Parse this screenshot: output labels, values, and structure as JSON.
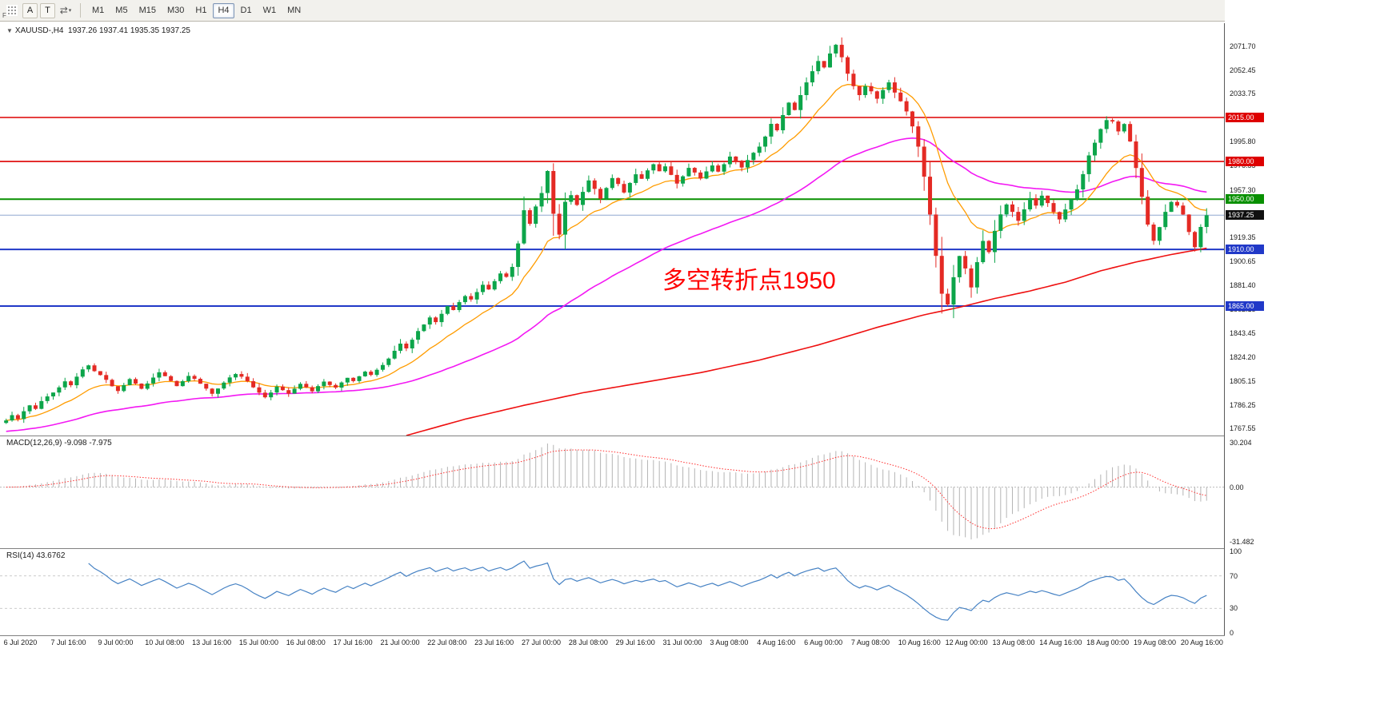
{
  "toolbar": {
    "stray_label": "F",
    "buttons": [
      {
        "name": "annotation-tool",
        "label": "A"
      },
      {
        "name": "text-tool",
        "label": "T"
      }
    ],
    "timeframes": [
      "M1",
      "M5",
      "M15",
      "M30",
      "H1",
      "H4",
      "D1",
      "W1",
      "MN"
    ],
    "active_timeframe": "H4"
  },
  "main_chart": {
    "marker": "▼",
    "symbol_info": "XAUUSD-,H4  1937.26 1937.41 1935.35 1937.25",
    "annotation": {
      "text": "多空转折点1950",
      "color": "#FF0000"
    },
    "y_ticks": [
      "2071.70",
      "2052.45",
      "2033.75",
      "1995.80",
      "1976.55",
      "1957.30",
      "1919.35",
      "1900.65",
      "1881.40",
      "1862.15",
      "1843.45",
      "1824.20",
      "1805.15",
      "1786.25",
      "1767.55"
    ]
  },
  "macd": {
    "label": "MACD(12,26,9) -9.098 -7.975",
    "y_ticks": [
      "30.204",
      "0.00",
      "-31.482"
    ]
  },
  "rsi": {
    "label": "RSI(14) 43.6762",
    "y_ticks": [
      "100",
      "70",
      "30",
      "0"
    ]
  },
  "x_axis": {
    "labels": [
      "6 Jul 2020",
      "7 Jul 16:00",
      "9 Jul 00:00",
      "10 Jul 08:00",
      "13 Jul 16:00",
      "15 Jul 00:00",
      "16 Jul 08:00",
      "17 Jul 16:00",
      "21 Jul 00:00",
      "22 Jul 08:00",
      "23 Jul 16:00",
      "27 Jul 00:00",
      "28 Jul 08:00",
      "29 Jul 16:00",
      "31 Jul 00:00",
      "3 Aug 08:00",
      "4 Aug 16:00",
      "6 Aug 00:00",
      "7 Aug 08:00",
      "10 Aug 16:00",
      "12 Aug 00:00",
      "13 Aug 08:00",
      "14 Aug 16:00",
      "18 Aug 00:00",
      "19 Aug 08:00",
      "20 Aug 16:00"
    ]
  },
  "chart_data": {
    "type": "candlestick",
    "symbol": "XAUUSD",
    "timeframe": "H4",
    "current_quote": {
      "open": 1937.26,
      "high": 1937.41,
      "low": 1935.35,
      "close": 1937.25
    },
    "price_range": [
      1762,
      2090
    ],
    "up_color": "#0CA54A",
    "down_color": "#E42A24",
    "closes": [
      1774.0,
      1778.2,
      1775.1,
      1781.3,
      1786.0,
      1783.2,
      1789.4,
      1793.1,
      1796.2,
      1800.3,
      1805.1,
      1802.0,
      1808.8,
      1814.6,
      1817.8,
      1813.2,
      1810.1,
      1806.3,
      1801.2,
      1797.4,
      1802.1,
      1806.9,
      1803.3,
      1799.2,
      1803.4,
      1808.1,
      1812.3,
      1809.2,
      1805.4,
      1801.3,
      1805.2,
      1809.4,
      1807.1,
      1803.2,
      1799.3,
      1795.2,
      1799.4,
      1804.1,
      1808.2,
      1810.9,
      1808.8,
      1805.2,
      1800.3,
      1796.1,
      1792.4,
      1796.2,
      1800.9,
      1798.1,
      1795.3,
      1799.2,
      1803.1,
      1800.4,
      1797.2,
      1801.3,
      1804.9,
      1802.2,
      1800.1,
      1804.2,
      1807.9,
      1805.3,
      1809.1,
      1812.8,
      1810.2,
      1814.3,
      1818.1,
      1823.2,
      1829.4,
      1835.1,
      1831.3,
      1838.2,
      1845.1,
      1850.3,
      1855.9,
      1852.2,
      1858.8,
      1864.9,
      1861.8,
      1868.1,
      1872.9,
      1870.2,
      1876.1,
      1881.9,
      1878.2,
      1884.8,
      1890.9,
      1888.2,
      1896.1,
      1914.8,
      1941.2,
      1930.4,
      1944.2,
      1954.9,
      1972.4,
      1938.4,
      1921.8,
      1947.9,
      1953.2,
      1945.4,
      1955.8,
      1964.9,
      1958.2,
      1950.4,
      1958.9,
      1966.8,
      1962.1,
      1955.3,
      1962.9,
      1969.8,
      1966.2,
      1972.9,
      1977.8,
      1972.2,
      1976.1,
      1969.3,
      1962.4,
      1968.2,
      1974.9,
      1971.2,
      1966.4,
      1972.1,
      1976.8,
      1971.9,
      1977.8,
      1983.9,
      1979.8,
      1975.2,
      1981.1,
      1986.9,
      1991.8,
      1999.8,
      2009.9,
      2004.8,
      2016.9,
      2026.8,
      2020.9,
      2032.8,
      2042.9,
      2051.8,
      2059.9,
      2054.8,
      2065.9,
      2072.8,
      2062.9,
      2049.8,
      2039.9,
      2032.8,
      2039.9,
      2035.8,
      2029.9,
      2036.8,
      2042.9,
      2034.8,
      2027.9,
      2019.8,
      2007.9,
      1991.8,
      1967.9,
      1937.8,
      1904.9,
      1874.8,
      1866.2,
      1887.9,
      1904.8,
      1894.9,
      1879.8,
      1899.9,
      1916.8,
      1907.9,
      1924.8,
      1937.9,
      1945.8,
      1939.9,
      1932.8,
      1941.9,
      1950.8,
      1944.9,
      1952.8,
      1946.9,
      1939.8,
      1933.9,
      1941.8,
      1949.9,
      1957.8,
      1969.9,
      1984.8,
      1994.9,
      2005.8,
      2012.9,
      2011.8,
      2003.9,
      2009.8,
      1995.9,
      1974.8,
      1951.9,
      1929.8,
      1916.9,
      1927.8,
      1939.9,
      1947.8,
      1944.9,
      1937.8,
      1923.9,
      1911.8,
      1927.9,
      1937.2
    ],
    "hlines": [
      {
        "price": 2015.0,
        "label": "2015.00",
        "color": "#DE0000",
        "width": 1.6
      },
      {
        "price": 1980.0,
        "label": "1980.00",
        "color": "#DE0000",
        "width": 1.6
      },
      {
        "price": 1950.0,
        "label": "1950.00",
        "color": "#089000",
        "width": 2
      },
      {
        "price": 1937.25,
        "label": "1937.25",
        "color": "#90A8D0",
        "label_bg": "#101010",
        "width": 1
      },
      {
        "price": 1910.0,
        "label": "1910.00",
        "color": "#2139C8",
        "width": 2
      },
      {
        "price": 1865.0,
        "label": "1865.00",
        "color": "#2139C8",
        "width": 2
      }
    ],
    "indicators": {
      "ma_fast": {
        "type": "EMA",
        "period": 14,
        "color": "#FF9C00"
      },
      "ma_mid": {
        "type": "EMA",
        "period": 55,
        "seed": 1765,
        "color": "#F318F3"
      },
      "ma_slow": {
        "type": "waypoints",
        "color": "#EE1010",
        "points": [
          [
            68,
            1762
          ],
          [
            78,
            1775
          ],
          [
            88,
            1786
          ],
          [
            98,
            1796
          ],
          [
            108,
            1804
          ],
          [
            118,
            1812
          ],
          [
            128,
            1822
          ],
          [
            138,
            1834
          ],
          [
            148,
            1848
          ],
          [
            156,
            1858
          ],
          [
            162,
            1864
          ],
          [
            168,
            1871
          ],
          [
            174,
            1877
          ],
          [
            180,
            1884
          ],
          [
            186,
            1893
          ],
          [
            192,
            1900
          ],
          [
            198,
            1906
          ],
          [
            204,
            1911
          ]
        ]
      },
      "macd": {
        "params": "12,26,9",
        "value": -9.098,
        "signal_value": -7.975,
        "hist_color": "#B4B4B4",
        "signal_color": "#FF2E2E"
      },
      "rsi": {
        "period": 14,
        "value": 43.6762,
        "color": "#4682C4",
        "levels": [
          70,
          30
        ]
      }
    }
  }
}
